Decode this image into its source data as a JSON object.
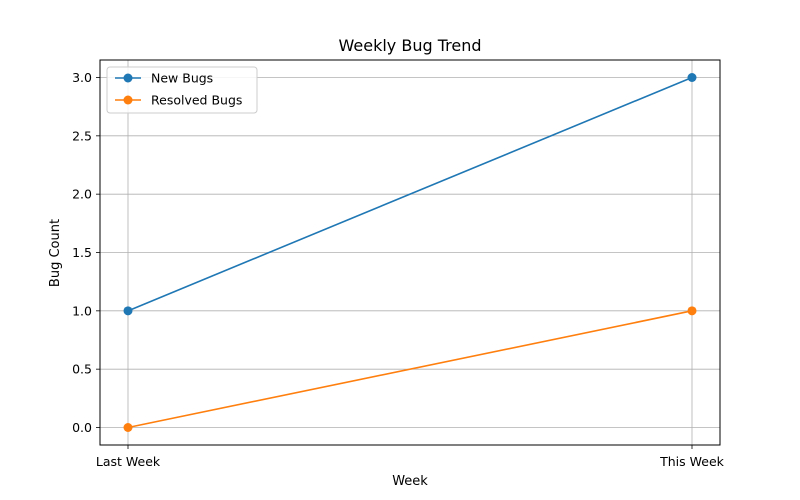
{
  "chart_data": {
    "type": "line",
    "title": "Weekly Bug Trend",
    "xlabel": "Week",
    "ylabel": "Bug Count",
    "categories": [
      "Last Week",
      "This Week"
    ],
    "ylim": [
      -0.15,
      3.15
    ],
    "yticks": [
      "0.0",
      "0.5",
      "1.0",
      "1.5",
      "2.0",
      "2.5",
      "3.0"
    ],
    "grid": true,
    "legend": "top-left",
    "series": [
      {
        "name": "New Bugs",
        "values": [
          1,
          3
        ],
        "color": "#1f77b4"
      },
      {
        "name": "Resolved Bugs",
        "values": [
          0,
          1
        ],
        "color": "#ff7f0e"
      }
    ]
  }
}
